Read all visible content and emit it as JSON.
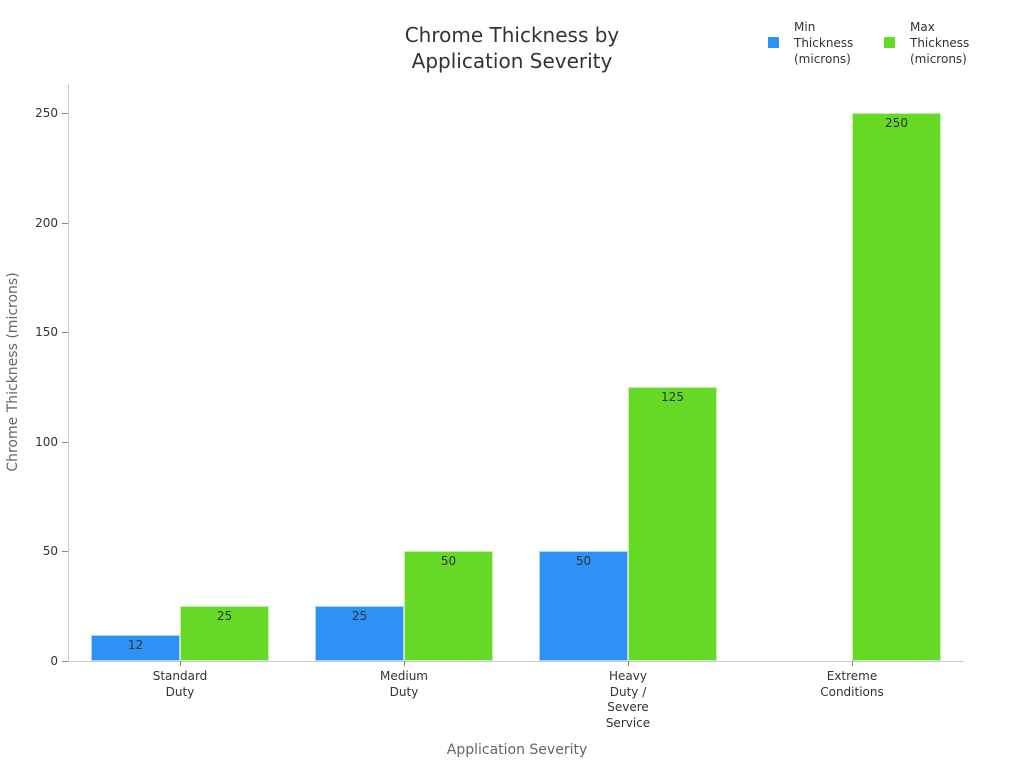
{
  "chart_data": {
    "type": "bar",
    "title": "Chrome Thickness by Application Severity",
    "title_lines": [
      "Chrome Thickness by",
      "Application Severity"
    ],
    "xlabel": "Application Severity",
    "ylabel": "Chrome Thickness (microns)",
    "ylim": [
      0,
      262
    ],
    "yticks": [
      0,
      50,
      100,
      150,
      200,
      250
    ],
    "grid": false,
    "legend_position": "top-right",
    "categories": [
      "Standard Duty",
      "Medium Duty",
      "Heavy Duty / Severe Service",
      "Extreme Conditions"
    ],
    "category_lines": [
      "Standard\nDuty",
      "Medium\nDuty",
      "Heavy\nDuty /\nSevere\nService",
      "Extreme\nConditions"
    ],
    "series": [
      {
        "name": "Min Thickness (microns)",
        "legend_lines": "Min\nThickness\n(microns)",
        "color": "#2e91f5",
        "values": [
          12,
          25,
          50,
          null
        ]
      },
      {
        "name": "Max Thickness (microns)",
        "legend_lines": "Max\nThickness\n(microns)",
        "color": "#66d926",
        "values": [
          25,
          50,
          125,
          250
        ]
      }
    ]
  }
}
